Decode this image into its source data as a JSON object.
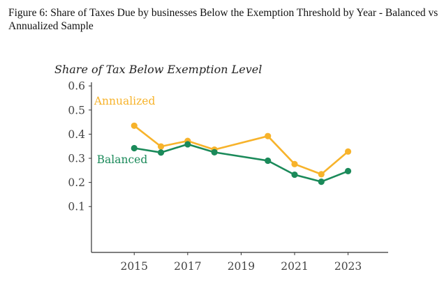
{
  "figure_title": "Figure 6: Share of Taxes Due by businesses Below the Exemption Threshold by Year - Balanced vs Annualized Sample",
  "chart_data": {
    "type": "line",
    "title": "",
    "xlabel": "",
    "ylabel": "Share of Tax Below Exemption Level",
    "xlim": [
      2013.4,
      2024.5
    ],
    "ylim": [
      -0.09,
      0.615
    ],
    "xticks": [
      2015,
      2017,
      2019,
      2021,
      2023
    ],
    "yticks": [
      0.1,
      0.2,
      0.3,
      0.4,
      0.5,
      0.6
    ],
    "xtick_labels": [
      "2015",
      "2017",
      "2019",
      "2021",
      "2023"
    ],
    "ytick_labels": [
      "0.1",
      "0.2",
      "0.3",
      "0.4",
      "0.5",
      "0.6"
    ],
    "grid": false,
    "series": [
      {
        "name": "Annualized",
        "color": "#F7B32B",
        "x": [
          2015,
          2016,
          2017,
          2018,
          2020,
          2021,
          2022,
          2023
        ],
        "values": [
          0.435,
          0.349,
          0.372,
          0.336,
          0.392,
          0.276,
          0.234,
          0.328
        ],
        "label_at": [
          2013.5,
          0.522
        ]
      },
      {
        "name": "Balanced",
        "color": "#1B8A5A",
        "x": [
          2015,
          2016,
          2017,
          2018,
          2020,
          2021,
          2022,
          2023
        ],
        "values": [
          0.342,
          0.324,
          0.358,
          0.325,
          0.29,
          0.232,
          0.203,
          0.247
        ],
        "label_at": [
          2013.6,
          0.28
        ]
      }
    ]
  }
}
